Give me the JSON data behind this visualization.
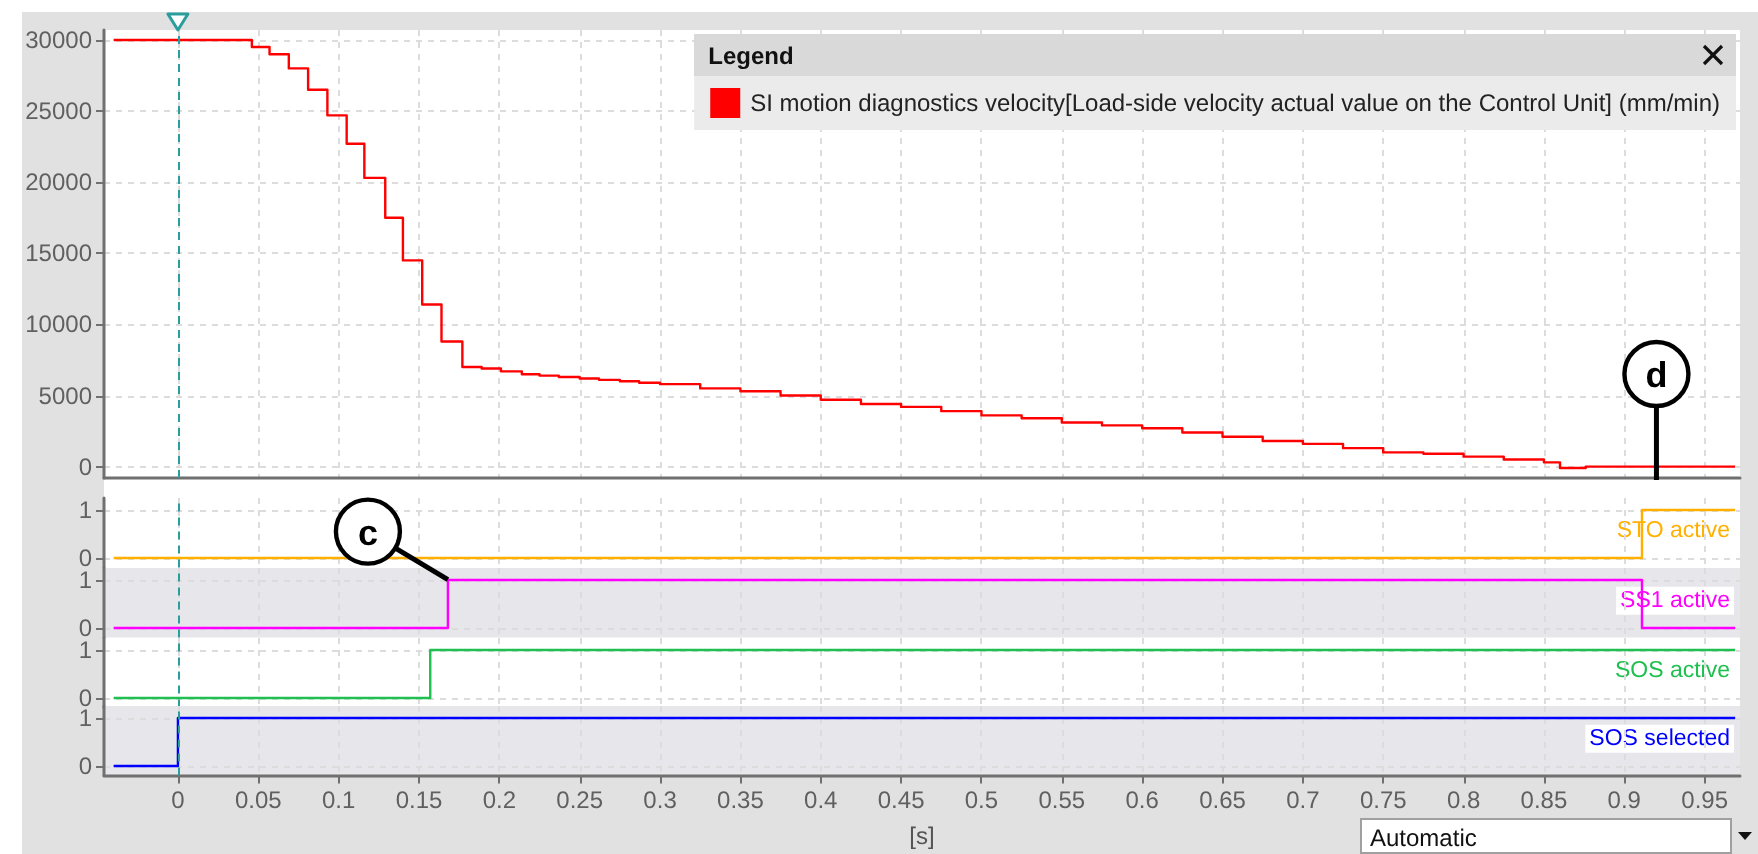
{
  "chart_data": [
    {
      "type": "step",
      "legend": "top right",
      "legend_title": "Legend",
      "series": [
        {
          "name": "SI motion diagnostics velocity[Load-side velocity actual value on the Control Unit] (mm/min)",
          "color": "#ff0000",
          "x": [
            -0.04,
            0.046,
            0.057,
            0.069,
            0.081,
            0.093,
            0.105,
            0.116,
            0.129,
            0.14,
            0.152,
            0.164,
            0.177,
            0.189,
            0.201,
            0.214,
            0.225,
            0.237,
            0.25,
            0.262,
            0.275,
            0.287,
            0.3,
            0.325,
            0.35,
            0.375,
            0.4,
            0.425,
            0.45,
            0.475,
            0.5,
            0.525,
            0.55,
            0.575,
            0.6,
            0.625,
            0.65,
            0.675,
            0.7,
            0.725,
            0.75,
            0.775,
            0.8,
            0.825,
            0.85,
            0.86,
            0.876,
            0.969
          ],
          "values": [
            30000,
            29500,
            29000,
            28000,
            26500,
            24700,
            22700,
            20300,
            17500,
            14500,
            11400,
            8800,
            7000,
            6900,
            6700,
            6500,
            6400,
            6300,
            6200,
            6100,
            6000,
            5900,
            5800,
            5500,
            5300,
            5000,
            4700,
            4400,
            4200,
            3900,
            3600,
            3400,
            3100,
            2900,
            2700,
            2400,
            2100,
            1800,
            1600,
            1300,
            1000,
            900,
            700,
            500,
            300,
            -100,
            0,
            0
          ]
        }
      ],
      "xlim": [
        -0.046,
        0.972
      ],
      "xticks": [
        0,
        0.05,
        0.1,
        0.15,
        0.2,
        0.25,
        0.3,
        0.35,
        0.4,
        0.45,
        0.5,
        0.55,
        0.6,
        0.65,
        0.7,
        0.75,
        0.8,
        0.85,
        0.9,
        0.95
      ],
      "ylim": [
        -800,
        30700
      ],
      "yticks": [
        0,
        5000,
        10000,
        15000,
        20000,
        25000,
        30000
      ],
      "grid": true,
      "tick_labels": "y",
      "ref_lines": [
        {
          "axis": "x",
          "value": 0,
          "color": "#2a9d9d",
          "line_style": "dashed"
        }
      ],
      "annotations": [
        {
          "text": "d",
          "x": 0.92
        }
      ]
    },
    {
      "type": "step",
      "series": [
        {
          "name": "STO active",
          "color": "#ffb000",
          "x": [
            -0.04,
            0.911,
            0.969
          ],
          "values": [
            0,
            1,
            1
          ]
        }
      ],
      "xlim": [
        -0.046,
        0.972
      ],
      "xticks": [
        0,
        0.05,
        0.1,
        0.15,
        0.2,
        0.25,
        0.3,
        0.35,
        0.4,
        0.45,
        0.5,
        0.55,
        0.6,
        0.65,
        0.7,
        0.75,
        0.8,
        0.85,
        0.9,
        0.95
      ],
      "ylim": [
        -0.2,
        1.25
      ],
      "yticks": [
        0,
        1
      ],
      "grid": true,
      "tick_labels": "y",
      "ref_lines": [
        {
          "axis": "x",
          "value": 0,
          "color": "#2a9d9d",
          "line_style": "dashed"
        }
      ]
    },
    {
      "type": "step",
      "series": [
        {
          "name": "SS1 active",
          "color": "#ff00ff",
          "x": [
            -0.04,
            0.168,
            0.911,
            0.969
          ],
          "values": [
            0,
            1,
            0,
            0
          ]
        }
      ],
      "xlim": [
        -0.046,
        0.972
      ],
      "xticks": [
        0,
        0.05,
        0.1,
        0.15,
        0.2,
        0.25,
        0.3,
        0.35,
        0.4,
        0.45,
        0.5,
        0.55,
        0.6,
        0.65,
        0.7,
        0.75,
        0.8,
        0.85,
        0.9,
        0.95
      ],
      "ylim": [
        -0.2,
        1.25
      ],
      "yticks": [
        0,
        1
      ],
      "grid": true,
      "tick_labels": "y",
      "ref_lines": [
        {
          "axis": "x",
          "value": 0,
          "color": "#2a9d9d",
          "line_style": "dashed"
        }
      ],
      "annotations": [
        {
          "text": "c",
          "x": 0.168,
          "y": 1
        }
      ]
    },
    {
      "type": "step",
      "series": [
        {
          "name": "SOS active",
          "color": "#20c050",
          "x": [
            -0.04,
            0.157,
            0.969
          ],
          "values": [
            0,
            1,
            1
          ]
        }
      ],
      "xlim": [
        -0.046,
        0.972
      ],
      "xticks": [
        0,
        0.05,
        0.1,
        0.15,
        0.2,
        0.25,
        0.3,
        0.35,
        0.4,
        0.45,
        0.5,
        0.55,
        0.6,
        0.65,
        0.7,
        0.75,
        0.8,
        0.85,
        0.9,
        0.95
      ],
      "ylim": [
        -0.2,
        1.25
      ],
      "yticks": [
        0,
        1
      ],
      "grid": true,
      "tick_labels": "y",
      "ref_lines": [
        {
          "axis": "x",
          "value": 0,
          "color": "#2a9d9d",
          "line_style": "dashed"
        }
      ]
    },
    {
      "type": "step",
      "series": [
        {
          "name": "SOS selected",
          "color": "#0000ff",
          "x": [
            -0.04,
            0,
            0.969
          ],
          "values": [
            0,
            1,
            1
          ]
        }
      ],
      "xlim": [
        -0.046,
        0.972
      ],
      "xticks": [
        0,
        0.05,
        0.1,
        0.15,
        0.2,
        0.25,
        0.3,
        0.35,
        0.4,
        0.45,
        0.5,
        0.55,
        0.6,
        0.65,
        0.7,
        0.75,
        0.8,
        0.85,
        0.9,
        0.95
      ],
      "ylim": [
        -0.2,
        1.25
      ],
      "yticks": [
        0,
        1
      ],
      "grid": true,
      "xlabel": "[s]",
      "ref_lines": [
        {
          "axis": "x",
          "value": 0,
          "color": "#2a9d9d",
          "line_style": "dashed"
        }
      ],
      "annotations": [
        "Automatic"
      ]
    }
  ]
}
